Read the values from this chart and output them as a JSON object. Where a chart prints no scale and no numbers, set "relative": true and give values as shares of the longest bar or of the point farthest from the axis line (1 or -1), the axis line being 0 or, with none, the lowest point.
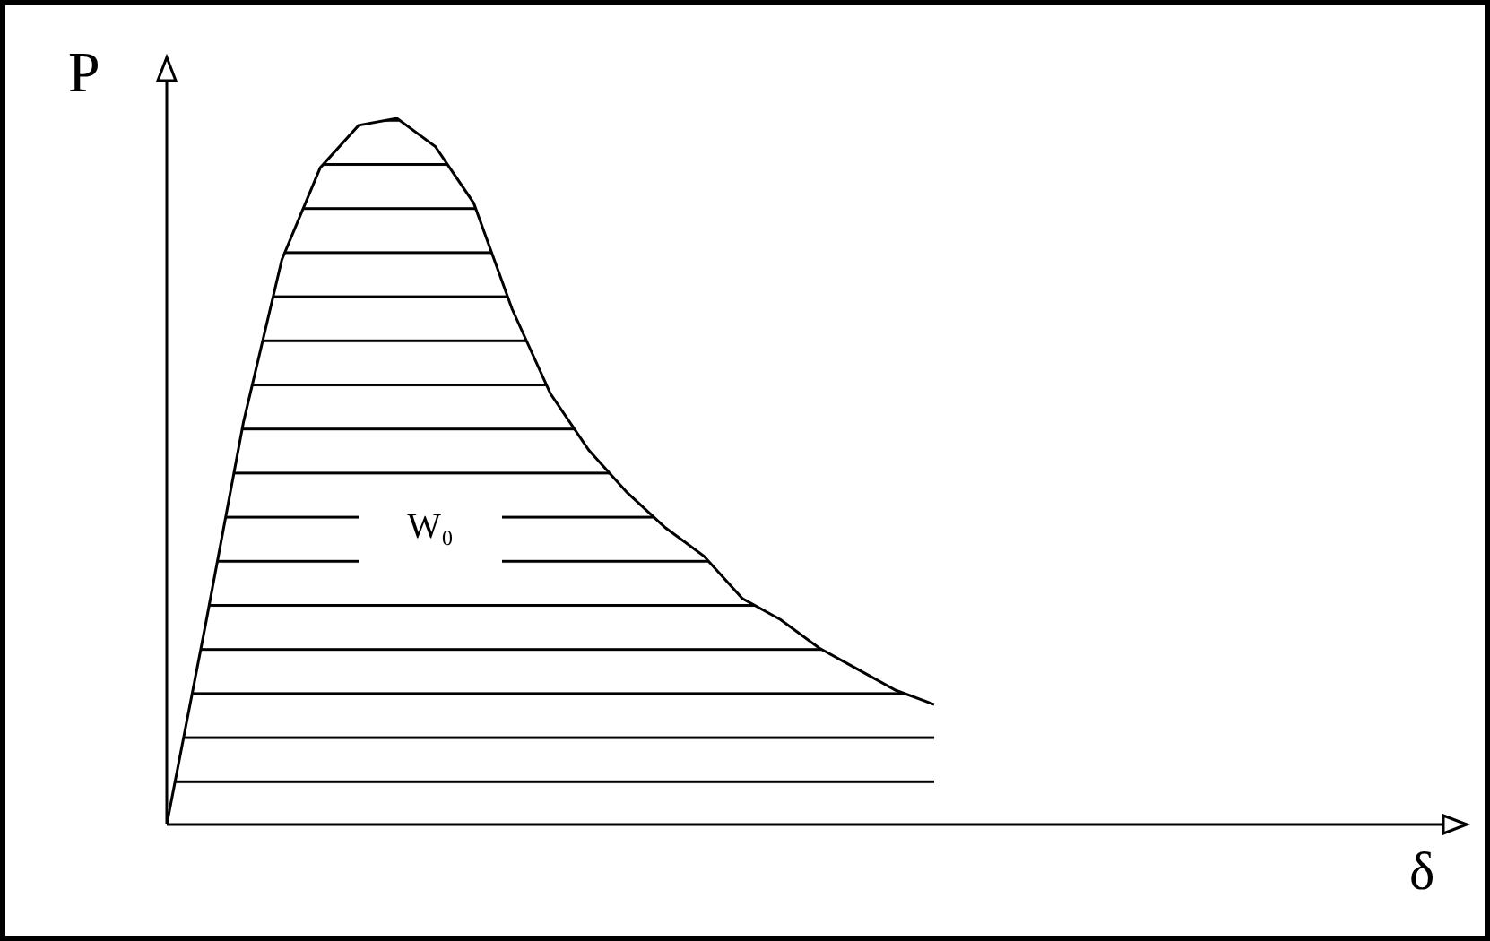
{
  "chart_data": {
    "type": "area",
    "relative": true,
    "ylabel": "P",
    "categories": [
      null,
      null,
      null,
      null,
      null,
      null,
      null,
      null,
      null,
      null,
      null,
      null,
      null,
      null,
      null,
      null,
      null,
      null,
      null,
      null,
      null
    ],
    "series": [
      {
        "color": "#000000",
        "values": [
          0,
          0.28,
          0.57,
          0.8,
          0.93,
          0.99,
          1,
          0.96,
          0.88,
          0.73,
          0.61,
          0.53,
          0.47,
          0.42,
          0.38,
          0.32,
          0.29,
          0.25,
          0.22,
          0.19,
          0.17
        ]
      }
    ],
    "annotations": [
      "W₀",
      "δ"
    ]
  }
}
